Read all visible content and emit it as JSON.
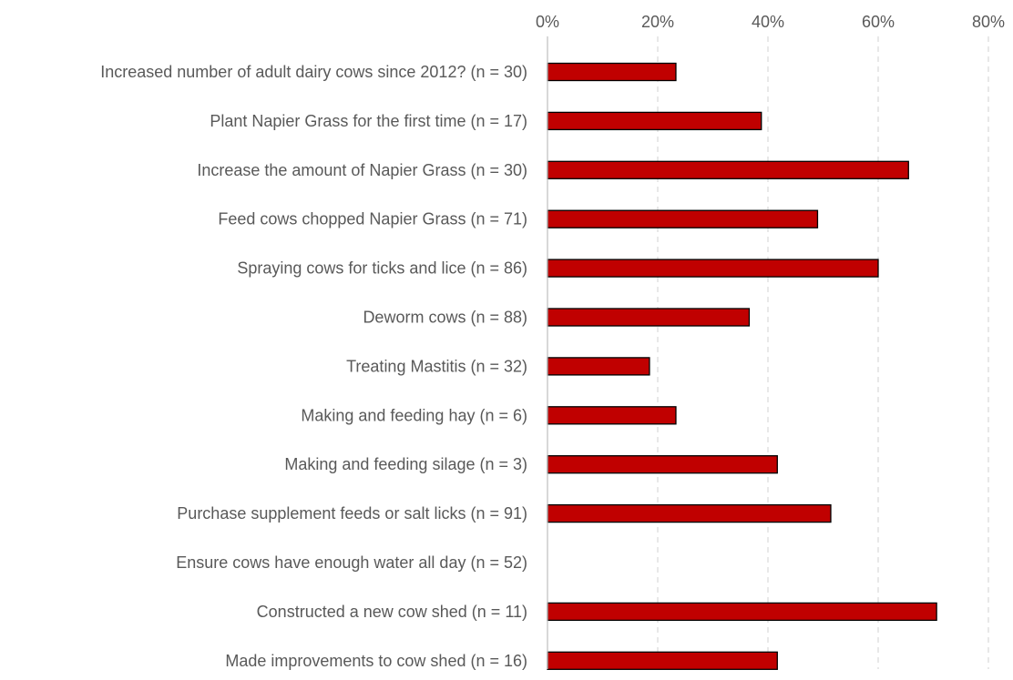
{
  "chart_data": {
    "type": "bar",
    "orientation": "horizontal",
    "title": "",
    "xlabel": "",
    "ylabel": "",
    "xlim": [
      0,
      80
    ],
    "x_ticks": [
      "0%",
      "20%",
      "40%",
      "60%",
      "80%"
    ],
    "x_tick_values": [
      0,
      20,
      40,
      60,
      80
    ],
    "axis_position": "top",
    "grid": true,
    "bar_color": "#C00000",
    "bar_edge_color": "#000000",
    "categories": [
      "Increased number of adult dairy cows since 2012? (n = 30)",
      "Plant Napier Grass for the first time (n = 17)",
      "Increase the amount of Napier Grass (n = 30)",
      "Feed cows chopped Napier Grass (n = 71)",
      "Spraying cows for ticks and lice (n = 86)",
      "Deworm cows (n = 88)",
      "Treating Mastitis (n = 32)",
      "Making and feeding hay (n = 6)",
      "Making and feeding silage (n = 3)",
      "Purchase supplement feeds or salt licks (n = 91)",
      "Ensure cows have enough water all day (n = 52)",
      "Constructed a new cow shed (n = 11)",
      "Made improvements to cow shed (n = 16)"
    ],
    "values": [
      23.3,
      38.8,
      65.5,
      49.0,
      60.0,
      36.6,
      18.5,
      23.3,
      41.7,
      51.4,
      0,
      70.6,
      41.7
    ]
  }
}
